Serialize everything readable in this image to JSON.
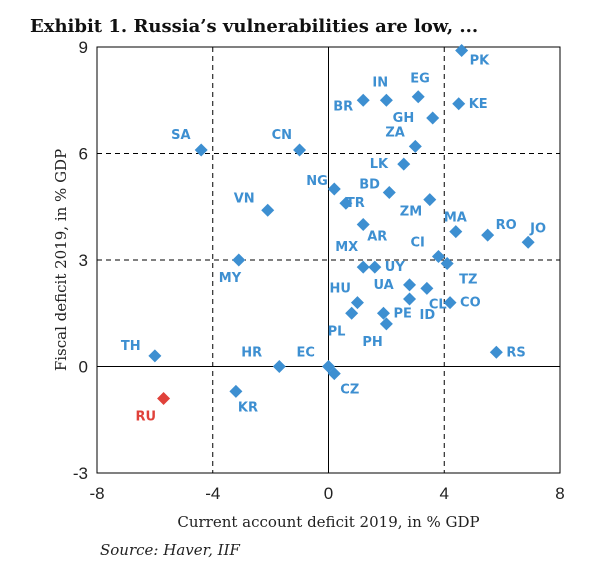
{
  "title": "Exhibit 1. Russia’s vulnerabilities are low, ...",
  "source": "Source: Haver, IIF",
  "colors": {
    "point": "#3d8fd1",
    "highlight": "#e0413a",
    "frame": "#000000",
    "grid": "#000000"
  },
  "chart_data": {
    "type": "scatter",
    "xlabel": "Current account deficit 2019, in % GDP",
    "ylabel": "Fiscal deficit 2019, in % GDP",
    "xlim": [
      -8,
      8
    ],
    "ylim": [
      -3,
      9
    ],
    "xticks": [
      -8,
      -4,
      0,
      4,
      8
    ],
    "yticks": [
      -3,
      0,
      3,
      6,
      9
    ],
    "xtick_labels": [
      "-8",
      "-4",
      "0",
      "4",
      "8"
    ],
    "ytick_labels": [
      "-3",
      "0",
      "3",
      "6",
      "9"
    ],
    "grid": "dashed at x=-4, 4 and y=3, 6; solid zero lines",
    "points": [
      {
        "label": "PK",
        "x": 4.6,
        "y": 8.9
      },
      {
        "label": "EG",
        "x": 3.1,
        "y": 7.6
      },
      {
        "label": "IN",
        "x": 2.0,
        "y": 7.5
      },
      {
        "label": "BR",
        "x": 1.2,
        "y": 7.5
      },
      {
        "label": "KE",
        "x": 4.5,
        "y": 7.4
      },
      {
        "label": "GH",
        "x": 3.6,
        "y": 7.0
      },
      {
        "label": "ZA",
        "x": 3.0,
        "y": 6.2
      },
      {
        "label": "SA",
        "x": -4.4,
        "y": 6.1
      },
      {
        "label": "CN",
        "x": -1.0,
        "y": 6.1
      },
      {
        "label": "LK",
        "x": 2.6,
        "y": 5.7
      },
      {
        "label": "NG",
        "x": 0.2,
        "y": 5.0
      },
      {
        "label": "BD",
        "x": 2.1,
        "y": 4.9
      },
      {
        "label": "TR",
        "x": 0.6,
        "y": 4.6
      },
      {
        "label": "ZM",
        "x": 3.5,
        "y": 4.7
      },
      {
        "label": "VN",
        "x": -2.1,
        "y": 4.4
      },
      {
        "label": "AR",
        "x": 1.2,
        "y": 4.0
      },
      {
        "label": "MA",
        "x": 4.4,
        "y": 3.8
      },
      {
        "label": "RO",
        "x": 5.5,
        "y": 3.7
      },
      {
        "label": "JO",
        "x": 6.9,
        "y": 3.5
      },
      {
        "label": "CI",
        "x": 3.8,
        "y": 3.1
      },
      {
        "label": "MX",
        "x": 1.2,
        "y": 2.8
      },
      {
        "label": "UY",
        "x": 1.6,
        "y": 2.8
      },
      {
        "label": "TZ",
        "x": 4.1,
        "y": 2.9
      },
      {
        "label": "MY",
        "x": -3.1,
        "y": 3.0
      },
      {
        "label": "UA",
        "x": 2.8,
        "y": 2.3
      },
      {
        "label": "CL",
        "x": 3.4,
        "y": 2.2
      },
      {
        "label": "HU",
        "x": 1.0,
        "y": 1.8
      },
      {
        "label": "ID",
        "x": 2.8,
        "y": 1.9
      },
      {
        "label": "CO",
        "x": 4.2,
        "y": 1.8
      },
      {
        "label": "PE",
        "x": 1.9,
        "y": 1.5
      },
      {
        "label": "PL",
        "x": 0.8,
        "y": 1.5
      },
      {
        "label": "PH",
        "x": 2.0,
        "y": 1.2
      },
      {
        "label": "RS",
        "x": 5.8,
        "y": 0.4
      },
      {
        "label": "TH",
        "x": -6.0,
        "y": 0.3
      },
      {
        "label": "HR",
        "x": -1.7,
        "y": 0.0
      },
      {
        "label": "EC",
        "x": 0.0,
        "y": 0.0
      },
      {
        "label": "CZ",
        "x": 0.2,
        "y": -0.2
      },
      {
        "label": "KR",
        "x": -3.2,
        "y": -0.7
      },
      {
        "label": "RU",
        "x": -5.7,
        "y": -0.9,
        "highlight": true
      }
    ]
  }
}
